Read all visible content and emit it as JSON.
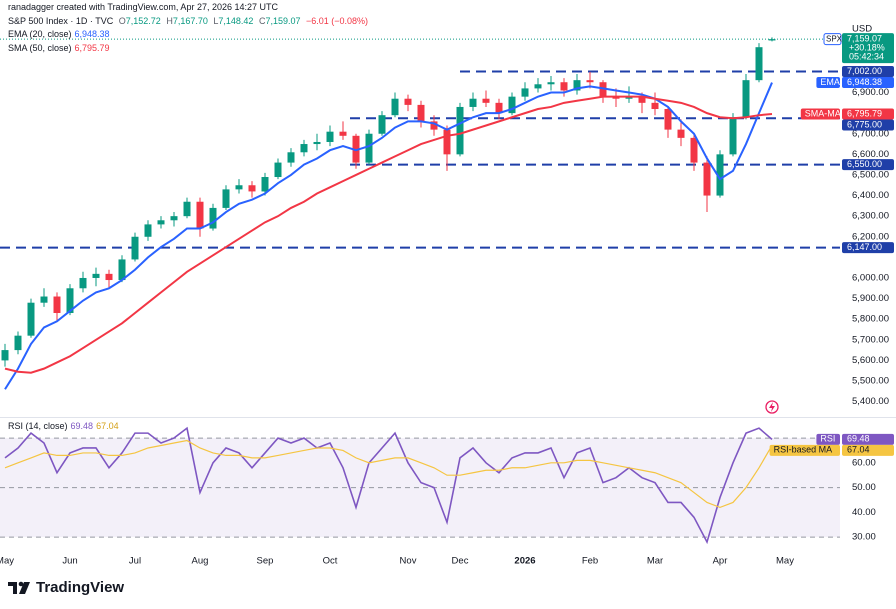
{
  "header": {
    "credit": "ranadagger created with TradingView.com, Apr 27, 2026 14:27 UTC"
  },
  "footer": {
    "brand": "TradingView"
  },
  "chart_data": [
    {
      "type": "candlestick",
      "title": "S&P 500 Index · 1D · TVC",
      "ohlc_names": [
        "O",
        "H",
        "L",
        "C"
      ],
      "last_labels": [
        "7,152.72",
        "7,167.70",
        "7,148.42",
        "7,159.07"
      ],
      "change_label": "−6.01 (−0.08%)",
      "currency": "USD",
      "symbol_badge": "SPX",
      "price_label": "7,159.07",
      "change_pct": "+30.18%",
      "countdown": "05:42:34",
      "up_color": "#089981",
      "down_color": "#f23645",
      "level_color": "#1f3fa8",
      "categories": [
        "May",
        null,
        null,
        null,
        null,
        "Jun",
        null,
        null,
        null,
        null,
        "Jul",
        null,
        null,
        null,
        null,
        "Aug",
        null,
        null,
        null,
        null,
        "Sep",
        null,
        null,
        null,
        null,
        "Oct",
        null,
        null,
        null,
        null,
        null,
        "Nov",
        null,
        null,
        null,
        "Dec",
        null,
        null,
        null,
        null,
        "2026",
        null,
        null,
        null,
        null,
        "Feb",
        null,
        null,
        null,
        null,
        "Mar",
        null,
        null,
        null,
        null,
        "Apr",
        null,
        null,
        null,
        null,
        "May",
        null,
        null,
        null,
        null
      ],
      "ohlc": [
        [
          5600,
          5680,
          5570,
          5650
        ],
        [
          5650,
          5740,
          5630,
          5720
        ],
        [
          5720,
          5900,
          5710,
          5880
        ],
        [
          5880,
          5950,
          5860,
          5910
        ],
        [
          5910,
          5930,
          5790,
          5830
        ],
        [
          5830,
          5970,
          5820,
          5950
        ],
        [
          5950,
          6030,
          5930,
          6000
        ],
        [
          6000,
          6050,
          5960,
          6020
        ],
        [
          6020,
          6040,
          5950,
          5990
        ],
        [
          5990,
          6110,
          5980,
          6090
        ],
        [
          6090,
          6220,
          6080,
          6200
        ],
        [
          6200,
          6280,
          6180,
          6260
        ],
        [
          6260,
          6300,
          6240,
          6280
        ],
        [
          6280,
          6320,
          6250,
          6300
        ],
        [
          6300,
          6390,
          6290,
          6370
        ],
        [
          6370,
          6390,
          6200,
          6240
        ],
        [
          6240,
          6360,
          6230,
          6340
        ],
        [
          6340,
          6450,
          6330,
          6430
        ],
        [
          6430,
          6480,
          6410,
          6450
        ],
        [
          6450,
          6470,
          6390,
          6420
        ],
        [
          6420,
          6510,
          6400,
          6490
        ],
        [
          6490,
          6580,
          6480,
          6560
        ],
        [
          6560,
          6630,
          6540,
          6610
        ],
        [
          6610,
          6670,
          6590,
          6650
        ],
        [
          6650,
          6700,
          6620,
          6660
        ],
        [
          6660,
          6740,
          6640,
          6710
        ],
        [
          6710,
          6760,
          6670,
          6690
        ],
        [
          6690,
          6700,
          6530,
          6560
        ],
        [
          6560,
          6720,
          6550,
          6700
        ],
        [
          6700,
          6810,
          6690,
          6790
        ],
        [
          6790,
          6900,
          6780,
          6870
        ],
        [
          6870,
          6890,
          6810,
          6840
        ],
        [
          6840,
          6860,
          6730,
          6760
        ],
        [
          6760,
          6790,
          6690,
          6720
        ],
        [
          6720,
          6740,
          6520,
          6600
        ],
        [
          6600,
          6850,
          6590,
          6830
        ],
        [
          6830,
          6900,
          6810,
          6870
        ],
        [
          6870,
          6910,
          6830,
          6850
        ],
        [
          6850,
          6870,
          6770,
          6800
        ],
        [
          6800,
          6900,
          6790,
          6880
        ],
        [
          6880,
          6950,
          6860,
          6920
        ],
        [
          6920,
          6970,
          6900,
          6940
        ],
        [
          6940,
          6980,
          6910,
          6950
        ],
        [
          6950,
          6970,
          6880,
          6910
        ],
        [
          6910,
          6990,
          6890,
          6960
        ],
        [
          6960,
          7000,
          6920,
          6950
        ],
        [
          6950,
          6960,
          6850,
          6880
        ],
        [
          6880,
          6920,
          6830,
          6870
        ],
        [
          6870,
          6930,
          6850,
          6880
        ],
        [
          6880,
          6900,
          6800,
          6850
        ],
        [
          6850,
          6900,
          6790,
          6820
        ],
        [
          6820,
          6830,
          6680,
          6720
        ],
        [
          6720,
          6770,
          6640,
          6680
        ],
        [
          6680,
          6700,
          6520,
          6560
        ],
        [
          6560,
          6590,
          6320,
          6400
        ],
        [
          6400,
          6620,
          6390,
          6600
        ],
        [
          6600,
          6800,
          6590,
          6780
        ],
        [
          6780,
          6990,
          6770,
          6960
        ],
        [
          6960,
          7140,
          6950,
          7120
        ],
        [
          7152.72,
          7167.7,
          7148.42,
          7159.07
        ],
        null,
        null,
        null,
        null,
        null
      ],
      "series": [
        {
          "name": "EMA (20, close)",
          "badge": "EMA",
          "color": "#2962ff",
          "last_label": "6,948.38",
          "values": [
            5460,
            5560,
            5680,
            5760,
            5790,
            5840,
            5890,
            5930,
            5950,
            5990,
            6040,
            6100,
            6150,
            6190,
            6240,
            6240,
            6270,
            6320,
            6360,
            6380,
            6410,
            6460,
            6500,
            6550,
            6580,
            6620,
            6640,
            6620,
            6640,
            6680,
            6730,
            6760,
            6760,
            6750,
            6720,
            6750,
            6780,
            6800,
            6800,
            6820,
            6850,
            6880,
            6900,
            6900,
            6920,
            6930,
            6920,
            6910,
            6900,
            6890,
            6870,
            6830,
            6760,
            6700,
            6580,
            6480,
            6520,
            6650,
            6800,
            6948.38,
            null,
            null,
            null,
            null,
            null
          ]
        },
        {
          "name": "SMA (50, close)",
          "badge": "SMA-MA",
          "color": "#f23645",
          "last_label": "6,795.79",
          "values": [
            5560,
            5545,
            5540,
            5560,
            5590,
            5620,
            5660,
            5700,
            5740,
            5780,
            5830,
            5880,
            5930,
            5980,
            6030,
            6070,
            6110,
            6150,
            6190,
            6230,
            6270,
            6300,
            6340,
            6370,
            6410,
            6440,
            6470,
            6500,
            6530,
            6560,
            6590,
            6620,
            6650,
            6670,
            6690,
            6700,
            6720,
            6740,
            6760,
            6780,
            6800,
            6820,
            6830,
            6850,
            6860,
            6870,
            6880,
            6880,
            6880,
            6880,
            6870,
            6860,
            6850,
            6830,
            6800,
            6780,
            6775,
            6780,
            6790,
            6795.79,
            null,
            null,
            null,
            null,
            null
          ]
        }
      ],
      "levels": [
        {
          "value": 7002,
          "label": "7,002.00"
        },
        {
          "value": 6775,
          "label": "6,775.00"
        },
        {
          "value": 6550,
          "label": "6,550.00"
        },
        {
          "value": 6147,
          "label": "6,147.00"
        }
      ],
      "ylim": [
        5335,
        7252
      ],
      "yticks": [
        {
          "value": 5400,
          "label": "5,400.00"
        },
        {
          "value": 5500,
          "label": "5,500.00"
        },
        {
          "value": 5600,
          "label": "5,600.00"
        },
        {
          "value": 5700,
          "label": "5,700.00"
        },
        {
          "value": 5800,
          "label": "5,800.00"
        },
        {
          "value": 5900,
          "label": "5,900.00"
        },
        {
          "value": 6000,
          "label": "6,000.00"
        },
        {
          "value": 6200,
          "label": "6,200.00"
        },
        {
          "value": 6300,
          "label": "6,300.00"
        },
        {
          "value": 6400,
          "label": "6,400.00"
        },
        {
          "value": 6500,
          "label": "6,500.00"
        },
        {
          "value": 6600,
          "label": "6,600.00"
        },
        {
          "value": 6700,
          "label": "6,700.00"
        },
        {
          "value": 6900,
          "label": "6,900.00"
        }
      ]
    },
    {
      "type": "line",
      "title": "RSI (14, close)",
      "band_color": "#7e57c2",
      "levels": [
        70,
        50,
        30
      ],
      "series": [
        {
          "name": "RSI",
          "color": "#7e57c2",
          "last_label": "69.48",
          "values": [
            62,
            66,
            72,
            68,
            56,
            64,
            66,
            66,
            58,
            64,
            72,
            72,
            68,
            70,
            74,
            48,
            60,
            66,
            64,
            58,
            64,
            70,
            68,
            70,
            66,
            68,
            58,
            42,
            60,
            66,
            72,
            60,
            52,
            50,
            36,
            62,
            66,
            60,
            56,
            62,
            64,
            64,
            66,
            54,
            64,
            66,
            52,
            54,
            58,
            54,
            52,
            44,
            44,
            38,
            28,
            46,
            60,
            72,
            74,
            69.48,
            null,
            null,
            null,
            null,
            null
          ]
        },
        {
          "name": "RSI-based MA",
          "color": "#f5c542",
          "last_label": "67.04",
          "values": [
            58,
            60,
            62,
            64,
            63,
            63,
            64,
            64,
            63,
            63,
            64,
            66,
            67,
            68,
            69,
            66,
            64,
            63,
            63,
            62,
            62,
            63,
            64,
            65,
            66,
            66,
            65,
            62,
            60,
            61,
            62,
            62,
            60,
            58,
            55,
            55,
            56,
            57,
            57,
            58,
            58,
            59,
            60,
            60,
            61,
            61,
            60,
            59,
            58,
            57,
            56,
            54,
            52,
            48,
            44,
            42,
            44,
            50,
            58,
            67.04,
            null,
            null,
            null,
            null,
            null
          ]
        }
      ],
      "ylim": [
        25.6,
        77.3
      ],
      "yticks": [
        {
          "value": 30,
          "label": "30.00"
        },
        {
          "value": 40,
          "label": "40.00"
        },
        {
          "value": 50,
          "label": "50.00"
        },
        {
          "value": 60,
          "label": "60.00"
        }
      ]
    }
  ]
}
